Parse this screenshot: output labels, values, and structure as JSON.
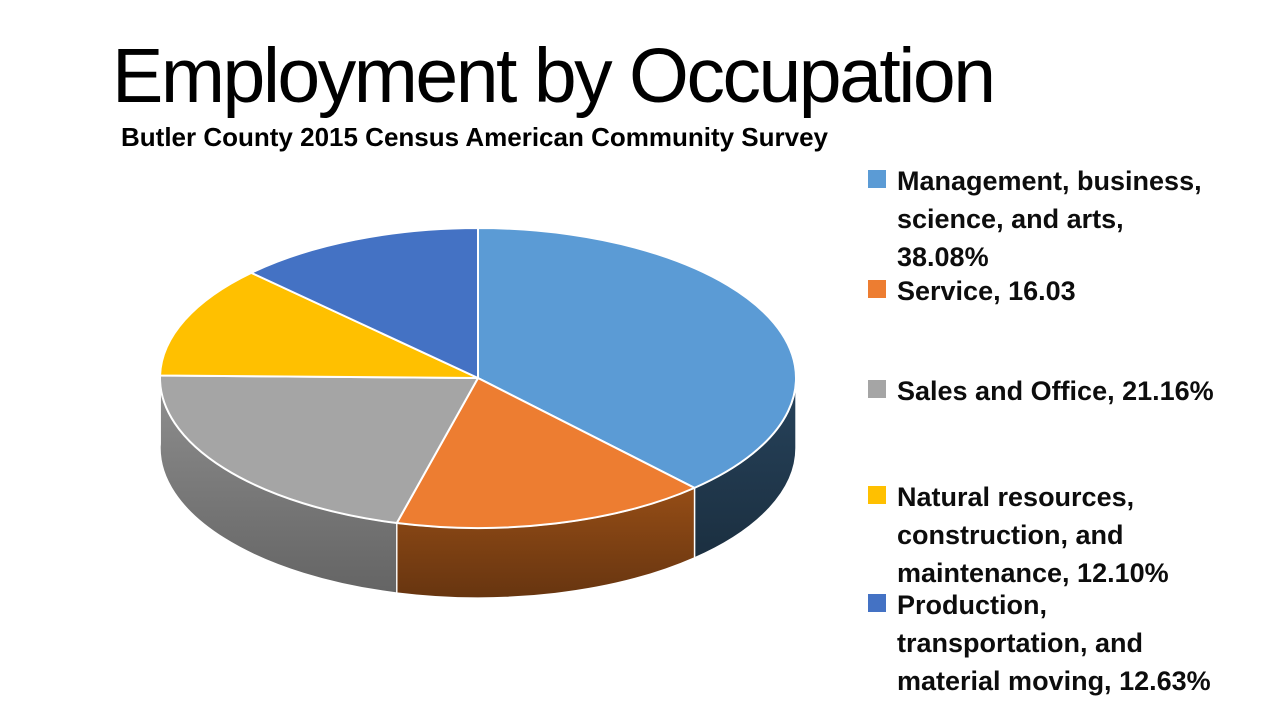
{
  "slide": {
    "title": "Employment by Occupation",
    "subtitle": "Butler County 2015 Census American Community Survey"
  },
  "chart_data": {
    "type": "pie",
    "style": "3d-exploded-none",
    "title": "Employment by Occupation",
    "subtitle": "Butler County 2015 Census American Community Survey",
    "categories": [
      "Management, business, science, and arts",
      "Service",
      "Sales and Office",
      "Natural resources, construction, and maintenance",
      "Production, transportation, and material moving"
    ],
    "values": [
      38.08,
      16.03,
      21.16,
      12.1,
      12.63
    ],
    "unit": "%",
    "start_angle_deg": 0,
    "direction": "clockwise",
    "colors": [
      "#5B9BD5",
      "#ED7D31",
      "#A5A5A5",
      "#FFC000",
      "#4472C4"
    ],
    "side_colors": [
      "#21394E",
      "#7E4113",
      "#7A7A7A",
      "#735600",
      "#203A5C"
    ],
    "slice_border_color": "#FFFFFF",
    "legend_position": "right",
    "legend": {
      "items": [
        {
          "label": "Management, business,\nscience, and arts,\n38.08%",
          "color": "#5B9BD5"
        },
        {
          "label": "Service, 16.03",
          "color": "#ED7D31"
        },
        {
          "label": "Sales and Office, 21.16%",
          "color": "#A5A5A5"
        },
        {
          "label": "Natural resources,\nconstruction, and\nmaintenance, 12.10%",
          "color": "#FFC000"
        },
        {
          "label": "Production,\ntransportation, and\nmaterial moving, 12.63%",
          "color": "#4472C4"
        }
      ]
    }
  }
}
